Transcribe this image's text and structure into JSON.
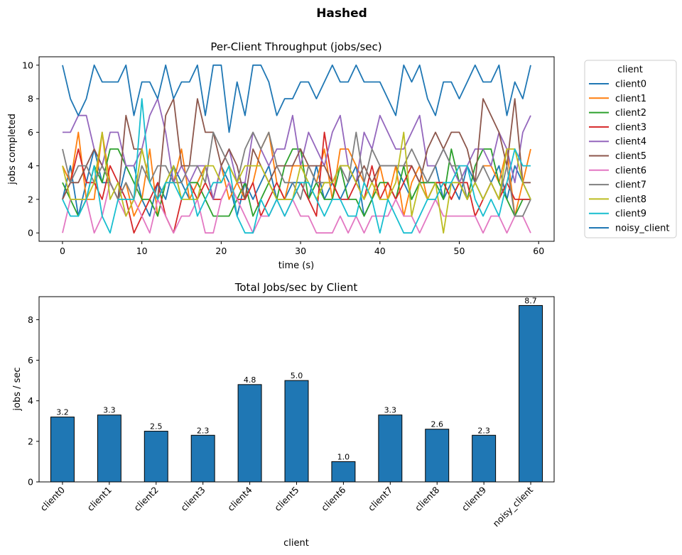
{
  "figure_title": "Hashed",
  "colors": {
    "client0": "#1f77b4",
    "client1": "#ff7f0e",
    "client2": "#2ca02c",
    "client3": "#d62728",
    "client4": "#9467bd",
    "client5": "#8c564b",
    "client6": "#e377c2",
    "client7": "#7f7f7f",
    "client8": "#bcbd22",
    "client9": "#17becf",
    "noisy_client": "#1f77b4",
    "bar": "#1f77b4"
  },
  "chart_data": [
    {
      "type": "line",
      "title": "Per-Client Throughput (jobs/sec)",
      "xlabel": "time (s)",
      "ylabel": "jobs completed",
      "xlim": [
        -2.95,
        61.95
      ],
      "ylim": [
        -0.5,
        10.5
      ],
      "xticks": [
        0,
        10,
        20,
        30,
        40,
        50,
        60
      ],
      "yticks": [
        0,
        2,
        4,
        6,
        8,
        10
      ],
      "legend_title": "client",
      "legend_placement": "outside-right",
      "x": [
        0,
        1,
        2,
        3,
        4,
        5,
        6,
        7,
        8,
        9,
        10,
        11,
        12,
        13,
        14,
        15,
        16,
        17,
        18,
        19,
        20,
        21,
        22,
        23,
        24,
        25,
        26,
        27,
        28,
        29,
        30,
        31,
        32,
        33,
        34,
        35,
        36,
        37,
        38,
        39,
        40,
        41,
        42,
        43,
        44,
        45,
        46,
        47,
        48,
        49,
        50,
        51,
        52,
        53,
        54,
        55,
        56,
        57,
        58,
        59
      ],
      "series": [
        {
          "name": "client0",
          "values": [
            2,
            4,
            1,
            3,
            5,
            3,
            3,
            2,
            4,
            4,
            2,
            1,
            3,
            2,
            4,
            3,
            2,
            3,
            4,
            2,
            4,
            3,
            1,
            3,
            2,
            3,
            4,
            2,
            2,
            3,
            3,
            2,
            4,
            2,
            3,
            2,
            3,
            4,
            1,
            2,
            4,
            4,
            4,
            3,
            2,
            3,
            3,
            4,
            2,
            3,
            2,
            4,
            3,
            2,
            3,
            4,
            2,
            4,
            3,
            2
          ]
        },
        {
          "name": "client1",
          "values": [
            4,
            3,
            6,
            2,
            2,
            6,
            3,
            2,
            3,
            1,
            2,
            5,
            1,
            3,
            3,
            5,
            2,
            3,
            4,
            2,
            4,
            2,
            3,
            2,
            3,
            5,
            6,
            3,
            2,
            4,
            4,
            4,
            3,
            5,
            2,
            5,
            5,
            4,
            3,
            2,
            4,
            2,
            4,
            1,
            3,
            4,
            2,
            3,
            3,
            2,
            3,
            2,
            3,
            4,
            4,
            3,
            5,
            1,
            3,
            5
          ]
        },
        {
          "name": "client2",
          "values": [
            3,
            2,
            1,
            2,
            4,
            3,
            5,
            5,
            4,
            3,
            2,
            2,
            1,
            3,
            4,
            2,
            3,
            3,
            2,
            1,
            1,
            1,
            2,
            3,
            1,
            2,
            3,
            2,
            4,
            5,
            5,
            2,
            3,
            2,
            2,
            4,
            2,
            2,
            1,
            2,
            3,
            3,
            2,
            4,
            2,
            3,
            3,
            3,
            2,
            5,
            3,
            2,
            4,
            5,
            5,
            3,
            2,
            1,
            2,
            2
          ]
        },
        {
          "name": "client3",
          "values": [
            2,
            3,
            5,
            3,
            3,
            2,
            4,
            3,
            2,
            0,
            1,
            2,
            3,
            1,
            0,
            2,
            3,
            2,
            3,
            2,
            2,
            3,
            2,
            2,
            3,
            1,
            2,
            3,
            2,
            2,
            3,
            2,
            1,
            6,
            3,
            2,
            2,
            3,
            2,
            4,
            2,
            3,
            2,
            3,
            4,
            3,
            2,
            3,
            3,
            2,
            3,
            3,
            1,
            2,
            3,
            2,
            3,
            2,
            2,
            2
          ]
        },
        {
          "name": "client4",
          "values": [
            6,
            6,
            7,
            7,
            5,
            4,
            6,
            6,
            4,
            4,
            5,
            7,
            8,
            6,
            3,
            4,
            3,
            4,
            4,
            2,
            4,
            5,
            3,
            3,
            6,
            5,
            4,
            5,
            5,
            7,
            4,
            6,
            5,
            4,
            6,
            7,
            4,
            3,
            6,
            5,
            7,
            6,
            5,
            5,
            6,
            7,
            4,
            4,
            5,
            4,
            3,
            4,
            5,
            5,
            4,
            6,
            5,
            3,
            6,
            7
          ]
        },
        {
          "name": "client5",
          "values": [
            2,
            3,
            3,
            4,
            5,
            4,
            3,
            2,
            7,
            5,
            5,
            3,
            2,
            7,
            8,
            4,
            4,
            8,
            6,
            6,
            4,
            5,
            4,
            2,
            5,
            4,
            3,
            4,
            4,
            4,
            5,
            4,
            4,
            4,
            3,
            4,
            4,
            3,
            4,
            3,
            4,
            4,
            4,
            4,
            4,
            3,
            5,
            6,
            5,
            6,
            6,
            5,
            3,
            8,
            7,
            6,
            4,
            8,
            3,
            3
          ]
        },
        {
          "name": "client6",
          "values": [
            0,
            2,
            2,
            2,
            0,
            1,
            3,
            2,
            1,
            2,
            1,
            0,
            2,
            1,
            0,
            1,
            1,
            2,
            0,
            0,
            2,
            3,
            2,
            1,
            0,
            1,
            1,
            2,
            1,
            2,
            1,
            1,
            0,
            0,
            0,
            1,
            0,
            1,
            0,
            1,
            1,
            1,
            2,
            1,
            1,
            0,
            1,
            2,
            1,
            1,
            1,
            1,
            1,
            0,
            1,
            1,
            0,
            1,
            1,
            0
          ]
        },
        {
          "name": "client7",
          "values": [
            5,
            3,
            4,
            4,
            3,
            4,
            3,
            2,
            3,
            2,
            4,
            3,
            4,
            4,
            3,
            3,
            4,
            4,
            3,
            6,
            5,
            4,
            3,
            5,
            6,
            5,
            6,
            4,
            3,
            3,
            2,
            4,
            3,
            3,
            3,
            4,
            3,
            6,
            3,
            5,
            4,
            4,
            4,
            4,
            5,
            4,
            3,
            4,
            5,
            4,
            4,
            2,
            3,
            4,
            3,
            2,
            4,
            1,
            1,
            2
          ]
        },
        {
          "name": "client8",
          "values": [
            4,
            2,
            2,
            2,
            3,
            6,
            2,
            3,
            1,
            2,
            5,
            3,
            2,
            3,
            4,
            2,
            2,
            2,
            4,
            4,
            3,
            4,
            3,
            4,
            4,
            4,
            3,
            2,
            2,
            2,
            4,
            3,
            2,
            3,
            3,
            4,
            4,
            3,
            2,
            3,
            2,
            2,
            3,
            6,
            1,
            3,
            2,
            3,
            0,
            3,
            3,
            2,
            3,
            2,
            3,
            2,
            5,
            5,
            3,
            2
          ]
        },
        {
          "name": "client9",
          "values": [
            2,
            1,
            1,
            2,
            4,
            1,
            0,
            2,
            2,
            2,
            8,
            3,
            2,
            3,
            3,
            2,
            3,
            1,
            2,
            3,
            3,
            4,
            1,
            0,
            0,
            2,
            1,
            2,
            1,
            2,
            3,
            3,
            2,
            1,
            2,
            2,
            1,
            1,
            3,
            2,
            0,
            2,
            1,
            0,
            0,
            1,
            2,
            2,
            3,
            3,
            4,
            4,
            2,
            1,
            2,
            1,
            3,
            5,
            4,
            4
          ]
        },
        {
          "name": "noisy_client",
          "values": [
            10,
            8,
            7,
            8,
            10,
            9,
            9,
            9,
            10,
            7,
            9,
            9,
            8,
            10,
            8,
            9,
            9,
            10,
            7,
            10,
            10,
            6,
            9,
            7,
            10,
            10,
            9,
            7,
            8,
            8,
            9,
            9,
            8,
            9,
            10,
            9,
            9,
            10,
            9,
            9,
            9,
            8,
            7,
            10,
            9,
            10,
            8,
            7,
            9,
            9,
            8,
            9,
            10,
            9,
            9,
            10,
            7,
            9,
            8,
            10
          ]
        }
      ]
    },
    {
      "type": "bar",
      "title": "Total Jobs/sec by Client",
      "xlabel": "client",
      "ylabel": "jobs / sec",
      "ylim": [
        0,
        9.135
      ],
      "yticks": [
        0,
        2,
        4,
        6,
        8
      ],
      "categories": [
        "client0",
        "client1",
        "client2",
        "client3",
        "client4",
        "client5",
        "client6",
        "client7",
        "client8",
        "client9",
        "noisy_client"
      ],
      "values": [
        3.2,
        3.3,
        2.5,
        2.3,
        4.8,
        5.0,
        1.0,
        3.3,
        2.6,
        2.3,
        8.7
      ],
      "labels": [
        "3.2",
        "3.3",
        "2.5",
        "2.3",
        "4.8",
        "5.0",
        "1.0",
        "3.3",
        "2.6",
        "2.3",
        "8.7"
      ]
    }
  ]
}
